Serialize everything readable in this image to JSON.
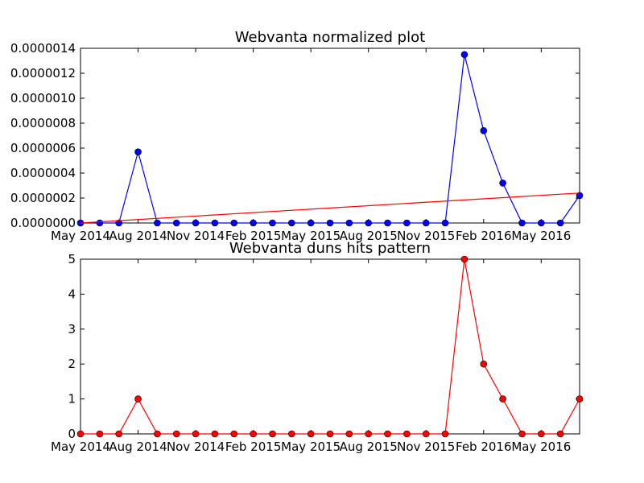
{
  "chart_data": [
    {
      "type": "line",
      "title": "Webvanta normalized plot",
      "x": [
        "2014-05",
        "2014-06",
        "2014-07",
        "2014-08",
        "2014-09",
        "2014-10",
        "2014-11",
        "2014-12",
        "2015-01",
        "2015-02",
        "2015-03",
        "2015-04",
        "2015-05",
        "2015-06",
        "2015-07",
        "2015-08",
        "2015-09",
        "2015-10",
        "2015-11",
        "2015-12",
        "2016-01",
        "2016-02",
        "2016-03",
        "2016-04",
        "2016-05",
        "2016-06",
        "2016-07"
      ],
      "series": [
        {
          "values": [
            0,
            0,
            0,
            5.7e-07,
            0,
            0,
            0,
            0,
            0,
            0,
            0,
            0,
            0,
            0,
            0,
            0,
            0,
            0,
            0,
            0,
            1.35e-06,
            7.4e-07,
            3.2e-07,
            0,
            0,
            0,
            2.2e-07
          ],
          "color": "#0000ff",
          "marker": "circle"
        },
        {
          "values": [
            0,
            2.4e-07
          ],
          "x": [
            "2014-05",
            "2016-07"
          ],
          "color": "#ff0000",
          "marker": "none"
        }
      ],
      "xticks": [
        "May 2014",
        "Aug 2014",
        "Nov 2014",
        "Feb 2015",
        "May 2015",
        "Aug 2015",
        "Nov 2015",
        "Feb 2016",
        "May 2016"
      ],
      "yticks": [
        "0.0000000",
        "0.0000002",
        "0.0000004",
        "0.0000006",
        "0.0000008",
        "0.0000010",
        "0.0000012",
        "0.0000014"
      ],
      "ylim": [
        0,
        1.4e-06
      ],
      "xlim": [
        "2014-05",
        "2016-07"
      ],
      "grid": false
    },
    {
      "type": "line",
      "title": "Webvanta duns hits pattern",
      "x": [
        "2014-05",
        "2014-06",
        "2014-07",
        "2014-08",
        "2014-09",
        "2014-10",
        "2014-11",
        "2014-12",
        "2015-01",
        "2015-02",
        "2015-03",
        "2015-04",
        "2015-05",
        "2015-06",
        "2015-07",
        "2015-08",
        "2015-09",
        "2015-10",
        "2015-11",
        "2015-12",
        "2016-01",
        "2016-02",
        "2016-03",
        "2016-04",
        "2016-05",
        "2016-06",
        "2016-07"
      ],
      "series": [
        {
          "values": [
            0,
            0,
            0,
            1,
            0,
            0,
            0,
            0,
            0,
            0,
            0,
            0,
            0,
            0,
            0,
            0,
            0,
            0,
            0,
            0,
            5,
            2,
            1,
            0,
            0,
            0,
            1
          ],
          "color": "#ff0000",
          "marker": "circle"
        }
      ],
      "xticks": [
        "May 2014",
        "Aug 2014",
        "Nov 2014",
        "Feb 2015",
        "May 2015",
        "Aug 2015",
        "Nov 2015",
        "Feb 2016",
        "May 2016"
      ],
      "yticks": [
        "0",
        "1",
        "2",
        "3",
        "4",
        "5"
      ],
      "ylim": [
        0,
        5
      ],
      "xlim": [
        "2014-05",
        "2016-07"
      ],
      "grid": false
    }
  ]
}
